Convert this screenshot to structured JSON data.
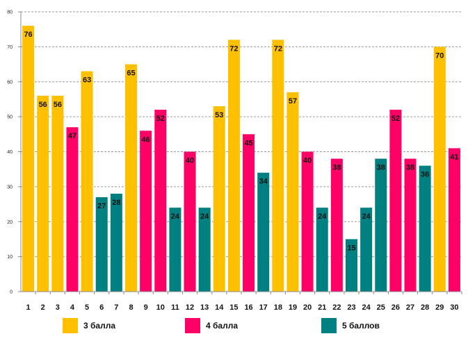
{
  "chart_data": {
    "type": "bar",
    "categories": [
      "1",
      "2",
      "3",
      "4",
      "5",
      "6",
      "7",
      "8",
      "9",
      "10",
      "11",
      "12",
      "13",
      "14",
      "15",
      "16",
      "17",
      "18",
      "19",
      "20",
      "21",
      "22",
      "23",
      "24",
      "25",
      "26",
      "27",
      "28",
      "29",
      "30"
    ],
    "values": [
      76,
      56,
      56,
      47,
      63,
      27,
      28,
      65,
      46,
      52,
      24,
      40,
      24,
      53,
      72,
      45,
      34,
      72,
      57,
      40,
      24,
      38,
      15,
      24,
      38,
      52,
      38,
      36,
      70,
      41
    ],
    "groups": [
      "3 балла",
      "3 балла",
      "3 балла",
      "4 балла",
      "3 балла",
      "5 баллов",
      "5 баллов",
      "3 балла",
      "4 балла",
      "4 балла",
      "5 баллов",
      "4 балла",
      "5 баллов",
      "3 балла",
      "3 балла",
      "4 балла",
      "5 баллов",
      "3 балла",
      "3 балла",
      "4 балла",
      "5 баллов",
      "4 балла",
      "5 баллов",
      "5 баллов",
      "5 баллов",
      "4 балла",
      "4 балла",
      "5 баллов",
      "3 балла",
      "4 балла"
    ],
    "series_colors": {
      "3 балла": "#FFC000",
      "4 балла": "#FF0066",
      "5 баллов": "#008080"
    },
    "legend": [
      "3 балла",
      "4 балла",
      "5 баллов"
    ],
    "yticks": [
      0,
      10,
      20,
      30,
      40,
      50,
      60,
      70,
      80
    ],
    "ylim": [
      0,
      80
    ],
    "grid": true,
    "legend_position": "bottom",
    "title": "",
    "xlabel": "",
    "ylabel": ""
  }
}
